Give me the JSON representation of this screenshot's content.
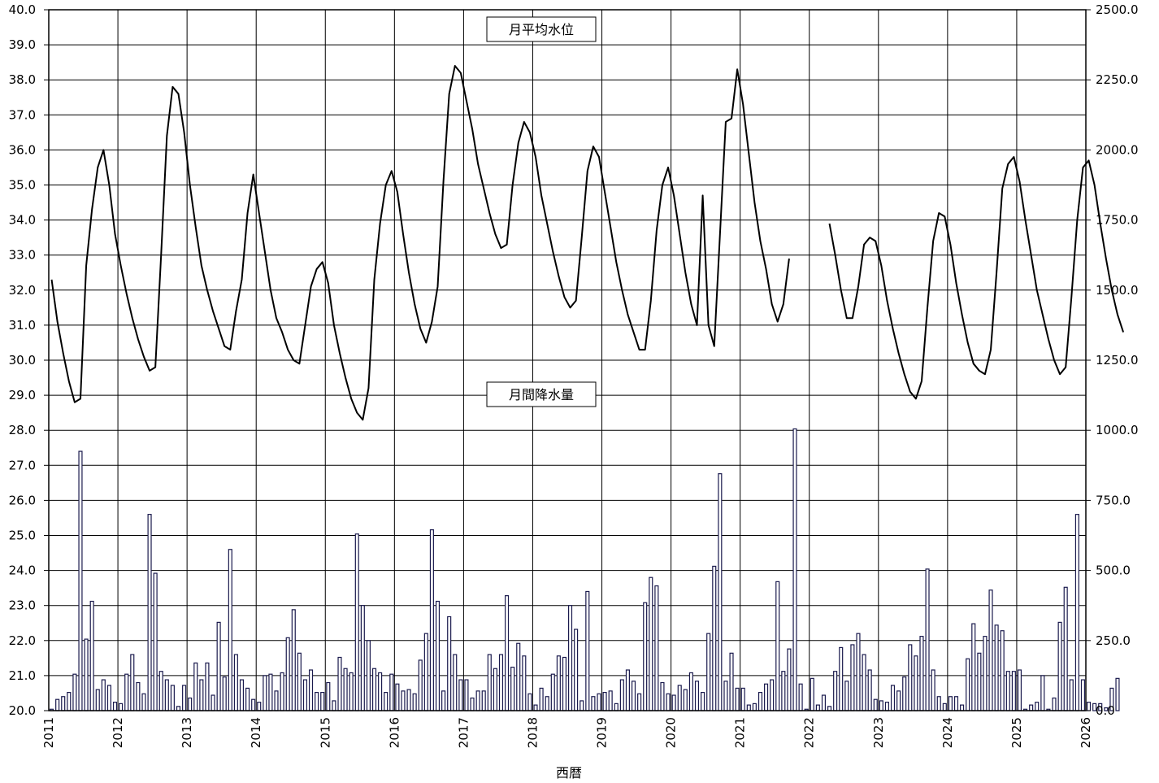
{
  "chart_data": {
    "type": "bar+line",
    "xlabel": "西暦",
    "x_ticks": [
      "2011",
      "2012",
      "2013",
      "2014",
      "2015",
      "2016",
      "2017",
      "2018",
      "2019",
      "2020",
      "2021",
      "2022",
      "2023",
      "2024",
      "2025",
      "2026"
    ],
    "y_left": {
      "min": 20.0,
      "max": 40.0,
      "step": 1.0
    },
    "y_right": {
      "min": 0.0,
      "max": 2500.0,
      "step": 250.0
    },
    "grid": true,
    "start": "2011-01",
    "series": [
      {
        "name": "月平均水位",
        "type": "line",
        "axis": "left",
        "color": "#000000",
        "values": [
          32.3,
          31.1,
          30.2,
          29.4,
          28.8,
          28.9,
          32.7,
          34.3,
          35.5,
          36.0,
          35.0,
          33.6,
          32.7,
          31.9,
          31.2,
          30.6,
          30.1,
          29.7,
          29.8,
          33.0,
          36.4,
          37.8,
          37.6,
          36.5,
          35.0,
          33.8,
          32.7,
          32.0,
          31.4,
          30.9,
          30.4,
          30.3,
          31.4,
          32.3,
          34.2,
          35.3,
          34.2,
          33.1,
          32.0,
          31.2,
          30.8,
          30.3,
          30.0,
          29.9,
          31.0,
          32.1,
          32.6,
          32.8,
          32.2,
          31.0,
          30.2,
          29.5,
          28.9,
          28.5,
          28.3,
          29.2,
          32.3,
          33.9,
          35.0,
          35.4,
          34.8,
          33.6,
          32.5,
          31.6,
          30.9,
          30.5,
          31.1,
          32.1,
          35.1,
          37.6,
          38.4,
          38.2,
          37.4,
          36.6,
          35.6,
          34.9,
          34.2,
          33.6,
          33.2,
          33.3,
          35.0,
          36.2,
          36.8,
          36.5,
          35.8,
          34.7,
          33.9,
          33.1,
          32.4,
          31.8,
          31.5,
          31.7,
          33.5,
          35.4,
          36.1,
          35.8,
          34.8,
          33.8,
          32.8,
          32.0,
          31.3,
          30.8,
          30.3,
          30.3,
          31.7,
          33.7,
          35.0,
          35.5,
          34.7,
          33.6,
          32.5,
          31.6,
          31.0,
          34.7,
          31.0,
          30.4,
          33.6,
          36.8,
          36.9,
          38.3,
          37.3,
          35.9,
          34.5,
          33.4,
          32.6,
          31.6,
          31.1,
          31.6,
          32.9,
          null,
          null,
          null,
          null,
          null,
          null,
          33.9,
          33.0,
          32.0,
          31.2,
          31.2,
          32.1,
          33.3,
          33.5,
          33.4,
          32.7,
          31.7,
          30.9,
          30.2,
          29.6,
          29.1,
          28.9,
          29.4,
          31.5,
          33.4,
          34.2,
          34.1,
          33.3,
          32.2,
          31.3,
          30.5,
          29.9,
          29.7,
          29.6,
          30.3,
          32.5,
          34.9,
          35.6,
          35.8,
          35.1,
          34.0,
          33.0,
          32.0,
          31.3,
          30.6,
          30.0,
          29.6,
          29.8,
          31.8,
          34.0,
          35.5,
          35.7,
          35.0,
          33.9,
          32.9,
          32.0,
          31.3,
          30.8
        ]
      },
      {
        "name": "月間降水量",
        "type": "bar",
        "axis": "right",
        "color": "#1a1a4d",
        "values": [
          5,
          40,
          50,
          65,
          130,
          925,
          255,
          390,
          75,
          110,
          90,
          30,
          25,
          130,
          200,
          100,
          60,
          700,
          490,
          140,
          110,
          90,
          15,
          90,
          45,
          170,
          110,
          170,
          55,
          315,
          120,
          575,
          200,
          110,
          80,
          40,
          30,
          125,
          130,
          70,
          135,
          260,
          360,
          205,
          110,
          145,
          65,
          65,
          100,
          35,
          190,
          150,
          135,
          630,
          375,
          250,
          150,
          135,
          65,
          130,
          95,
          70,
          75,
          60,
          180,
          275,
          645,
          390,
          70,
          335,
          200,
          110,
          110,
          45,
          70,
          70,
          200,
          150,
          200,
          410,
          155,
          240,
          195,
          60,
          20,
          80,
          50,
          130,
          195,
          190,
          375,
          290,
          35,
          425,
          50,
          60,
          65,
          70,
          25,
          110,
          145,
          105,
          60,
          385,
          475,
          445,
          100,
          60,
          55,
          90,
          75,
          135,
          105,
          65,
          275,
          515,
          845,
          105,
          205,
          80,
          80,
          20,
          25,
          65,
          95,
          110,
          460,
          140,
          220,
          1005,
          95,
          5,
          115,
          20,
          55,
          15,
          140,
          225,
          105,
          235,
          275,
          200,
          145,
          40,
          35,
          30,
          90,
          70,
          120,
          235,
          195,
          265,
          505,
          145,
          50,
          25,
          50,
          50,
          20,
          185,
          310,
          205,
          265,
          430,
          305,
          285,
          140,
          140,
          145,
          5,
          20,
          30,
          125,
          5,
          45,
          315,
          440,
          110,
          700,
          110,
          30,
          25,
          25,
          10,
          80,
          115
        ]
      }
    ]
  }
}
